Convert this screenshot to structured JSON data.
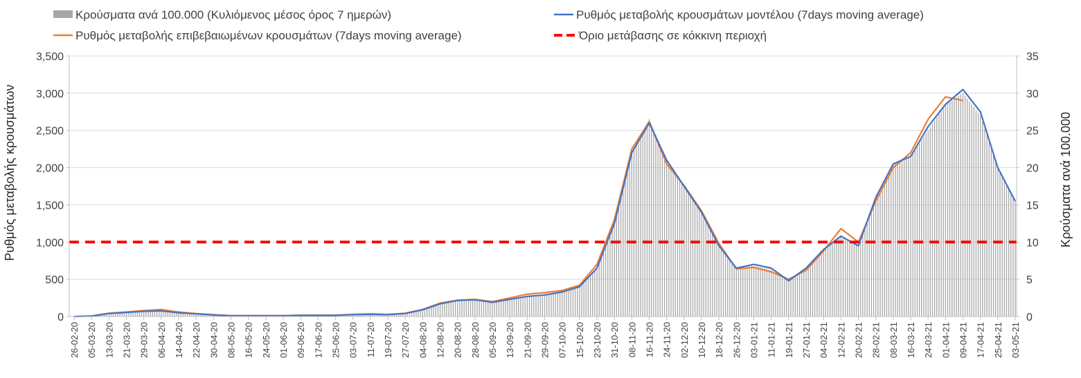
{
  "chart_data": {
    "type": "bar+line",
    "legend": {
      "placement": "top",
      "items": [
        {
          "label": "Κρούσματα ανά 100.000 (Κυλιόμενος μέσος όρος 7 ημερών)",
          "kind": "bar",
          "color": "#a6a6a6"
        },
        {
          "label": "Ρυθμός μεταβολής κρουσμάτων μοντέλου (7days moving average)",
          "kind": "line",
          "color": "#4472c4"
        },
        {
          "label": "Ρυθμός μεταβολής επιβεβαιωμένων κρουσμάτων (7days moving average)",
          "kind": "line",
          "color": "#ed7d31"
        },
        {
          "label": "Όριο μετάβασης σε κόκκινη περιοχή",
          "kind": "dashed",
          "color": "#ff0000"
        }
      ]
    },
    "ylabel_left": "Ρυθμός μεταβολής κρουσμάτων",
    "ylabel_right": "Κρούσματα ανά 100.000",
    "ylim_left": [
      0,
      3500
    ],
    "ylim_right": [
      0,
      35
    ],
    "yticks_left": [
      "0",
      "500",
      "1,000",
      "1,500",
      "2,000",
      "2,500",
      "3,000",
      "3,500"
    ],
    "yticks_right": [
      "0",
      "5",
      "10",
      "15",
      "20",
      "25",
      "30",
      "35"
    ],
    "grid": true,
    "x_step_days": 8,
    "categories": [
      "26-02-20",
      "05-03-20",
      "13-03-20",
      "21-03-20",
      "29-03-20",
      "06-04-20",
      "14-04-20",
      "22-04-20",
      "30-04-20",
      "08-05-20",
      "16-05-20",
      "24-05-20",
      "01-06-20",
      "09-06-20",
      "17-06-20",
      "25-06-20",
      "03-07-20",
      "11-07-20",
      "19-07-20",
      "27-07-20",
      "04-08-20",
      "12-08-20",
      "20-08-20",
      "28-08-20",
      "05-09-20",
      "13-09-20",
      "21-09-20",
      "29-09-20",
      "07-10-20",
      "15-10-20",
      "23-10-20",
      "31-10-20",
      "08-11-20",
      "16-11-20",
      "24-11-20",
      "02-12-20",
      "10-12-20",
      "18-12-20",
      "26-12-20",
      "03-01-21",
      "11-01-21",
      "19-01-21",
      "27-01-21",
      "04-02-21",
      "12-02-21",
      "20-02-21",
      "28-02-21",
      "08-03-21",
      "16-03-21",
      "24-03-21",
      "01-04-21",
      "09-04-21",
      "17-04-21",
      "25-04-21",
      "03-05-21"
    ],
    "series": [
      {
        "name": "model",
        "axis": "left",
        "values": [
          0,
          5,
          40,
          55,
          70,
          75,
          50,
          35,
          20,
          10,
          10,
          10,
          10,
          15,
          15,
          15,
          25,
          30,
          25,
          40,
          90,
          170,
          215,
          225,
          190,
          230,
          270,
          290,
          330,
          400,
          650,
          1250,
          2200,
          2600,
          2100,
          1750,
          1400,
          950,
          650,
          700,
          650,
          480,
          650,
          900,
          1080,
          950,
          1600,
          2050,
          2150,
          2550,
          2850,
          3050,
          2750,
          2000,
          1550
        ]
      },
      {
        "name": "confirmed",
        "axis": "left",
        "values": [
          0,
          8,
          45,
          60,
          80,
          95,
          60,
          40,
          25,
          12,
          12,
          12,
          12,
          18,
          18,
          18,
          28,
          35,
          28,
          45,
          95,
          180,
          220,
          230,
          200,
          250,
          300,
          320,
          350,
          420,
          700,
          1300,
          2250,
          2620,
          2050,
          1760,
          1420,
          980,
          640,
          660,
          600,
          500,
          620,
          880,
          1180,
          1000,
          1550,
          2000,
          2200,
          2650,
          2950,
          2900,
          null,
          null,
          null
        ]
      },
      {
        "name": "cases_per_100k",
        "axis": "right",
        "values": [
          0,
          0.05,
          0.4,
          0.55,
          0.7,
          0.75,
          0.5,
          0.35,
          0.2,
          0.1,
          0.1,
          0.1,
          0.1,
          0.15,
          0.15,
          0.15,
          0.25,
          0.3,
          0.25,
          0.4,
          0.9,
          1.7,
          2.15,
          2.25,
          1.9,
          2.3,
          2.7,
          2.9,
          3.3,
          4.0,
          6.5,
          12.5,
          22,
          26.5,
          21,
          17.5,
          14,
          9.5,
          6.5,
          6.8,
          6.3,
          4.8,
          6.5,
          9,
          10.8,
          9.5,
          16,
          20.5,
          21.5,
          25,
          28.5,
          30,
          27,
          20,
          15.5
        ]
      }
    ],
    "threshold": {
      "value": 1000,
      "axis": "left"
    }
  }
}
